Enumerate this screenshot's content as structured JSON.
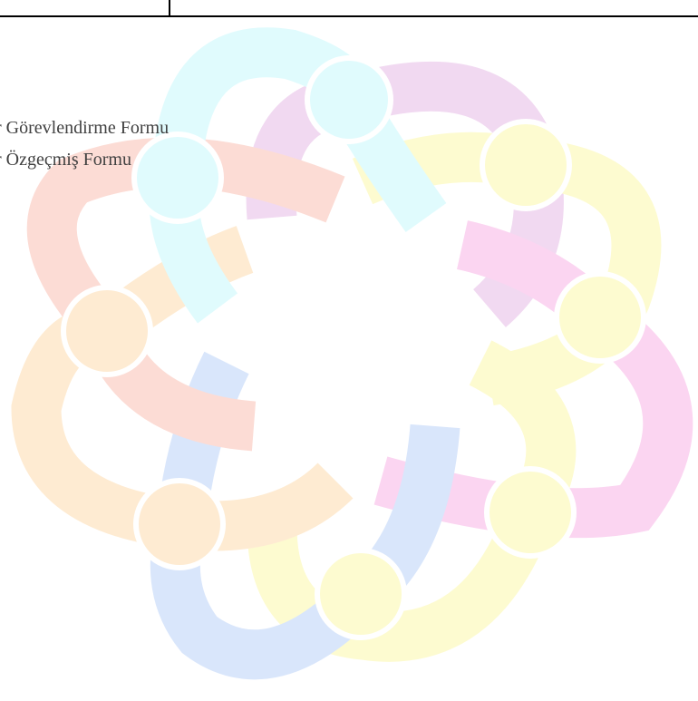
{
  "list": {
    "items": [
      "r Görevlendirme Formu",
      "r Özgeçmiş Formu"
    ]
  }
}
